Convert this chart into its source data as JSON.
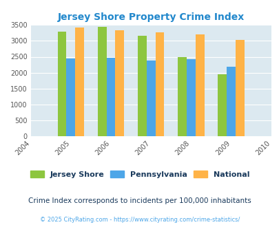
{
  "title": "Jersey Shore Property Crime Index",
  "years": [
    2004,
    2005,
    2006,
    2007,
    2008,
    2009,
    2010
  ],
  "data_years": [
    2005,
    2006,
    2007,
    2008,
    2009
  ],
  "jersey_shore": [
    3280,
    3450,
    3150,
    2500,
    1950
  ],
  "pennsylvania": [
    2450,
    2470,
    2380,
    2430,
    2190
  ],
  "national": [
    3420,
    3340,
    3260,
    3200,
    3040
  ],
  "colors": {
    "jersey_shore": "#8dc63f",
    "pennsylvania": "#4da6e8",
    "national": "#ffb347"
  },
  "legend_labels": [
    "Jersey Shore",
    "Pennsylvania",
    "National"
  ],
  "subtitle": "Crime Index corresponds to incidents per 100,000 inhabitants",
  "footer": "© 2025 CityRating.com - https://www.cityrating.com/crime-statistics/",
  "ylim": [
    0,
    3500
  ],
  "yticks": [
    0,
    500,
    1000,
    1500,
    2000,
    2500,
    3000,
    3500
  ],
  "background_color": "#dce9f0",
  "title_color": "#2288cc",
  "subtitle_color": "#1a3a5c",
  "footer_color": "#4da6e8",
  "legend_text_color": "#1a3a5c",
  "bar_width": 0.22
}
